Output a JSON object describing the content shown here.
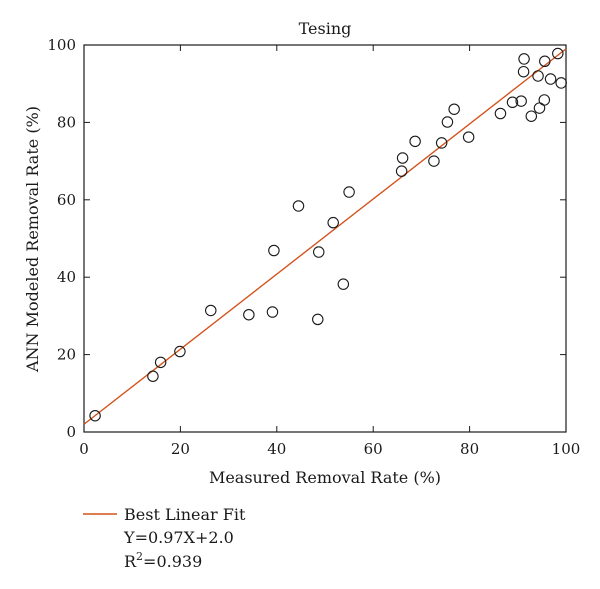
{
  "chart_data": {
    "type": "scatter",
    "title": "Tesing",
    "xlabel": "Measured Removal Rate (%)",
    "ylabel": "ANN Modeled Removal Rate (%)",
    "xlim": [
      0,
      100
    ],
    "ylim": [
      0,
      100
    ],
    "xticks": [
      "0",
      "20",
      "40",
      "60",
      "80",
      "100"
    ],
    "yticks": [
      "0",
      "20",
      "40",
      "60",
      "80",
      "100"
    ],
    "grid": false,
    "legend_position": "bottom-left, below plot",
    "series": [
      {
        "type": "scatter",
        "marker": "open-circle",
        "points": [
          [
            2.3,
            4.2
          ],
          [
            14.3,
            14.4
          ],
          [
            15.9,
            18.0
          ],
          [
            19.9,
            20.8
          ],
          [
            26.3,
            31.4
          ],
          [
            34.2,
            30.3
          ],
          [
            39.1,
            31.0
          ],
          [
            39.4,
            46.9
          ],
          [
            44.5,
            58.4
          ],
          [
            48.5,
            29.1
          ],
          [
            48.7,
            46.5
          ],
          [
            51.7,
            54.1
          ],
          [
            53.8,
            38.2
          ],
          [
            55.0,
            62.0
          ],
          [
            65.9,
            67.4
          ],
          [
            66.1,
            70.8
          ],
          [
            68.7,
            75.1
          ],
          [
            72.6,
            70.0
          ],
          [
            74.2,
            74.7
          ],
          [
            75.4,
            80.1
          ],
          [
            76.8,
            83.4
          ],
          [
            79.8,
            76.2
          ],
          [
            86.4,
            82.3
          ],
          [
            88.9,
            85.2
          ],
          [
            90.7,
            85.5
          ],
          [
            91.2,
            93.1
          ],
          [
            91.3,
            96.4
          ],
          [
            92.8,
            81.6
          ],
          [
            94.2,
            92.0
          ],
          [
            94.5,
            83.7
          ],
          [
            95.5,
            85.8
          ],
          [
            95.6,
            95.8
          ],
          [
            96.8,
            91.2
          ],
          [
            98.3,
            97.8
          ],
          [
            99.0,
            90.2
          ]
        ]
      },
      {
        "type": "line",
        "name": "Best Linear Fit",
        "slope": 0.97,
        "intercept": 2.0,
        "color": "#d2541c"
      }
    ],
    "legend": {
      "label": "Best Linear Fit",
      "equation": "Y=0.97X+2.0",
      "r2_prefix": "R",
      "r2_sup": "2",
      "r2_value": "=0.939"
    },
    "colors": {
      "fit_line": "#d2541c",
      "markers": "#1a1a1a",
      "axes": "#1a1a1a"
    }
  }
}
